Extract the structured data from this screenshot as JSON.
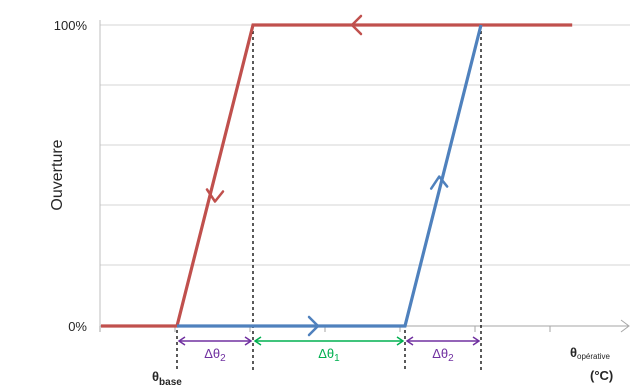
{
  "chart_data": {
    "type": "line",
    "ylabel": "Ouverture",
    "y_ticks": [
      "0%",
      "100%"
    ],
    "gridlines": true,
    "x_axis_label": {
      "symbol": "θ",
      "subscript": "opérative",
      "unit": "(°C)"
    },
    "x_marker": {
      "symbol": "θ",
      "subscript": "base"
    },
    "series": [
      {
        "color": "#c0504d",
        "points": [
          [
            -1.0,
            0
          ],
          [
            0,
            0
          ],
          [
            1,
            100
          ],
          [
            5.2,
            100
          ]
        ],
        "arrows": [
          "descending-slope",
          "leftward-top"
        ]
      },
      {
        "color": "#4f81bd",
        "points": [
          [
            0,
            0
          ],
          [
            3,
            0
          ],
          [
            4,
            100
          ]
        ],
        "arrows": [
          "rightward-bottom",
          "ascending-slope"
        ]
      }
    ],
    "spans": [
      {
        "symbol": "Δθ",
        "subscript": "2",
        "from": 0,
        "to": 1,
        "color": "#7030a0"
      },
      {
        "symbol": "Δθ",
        "subscript": "1",
        "from": 1,
        "to": 3,
        "color": "#00b050"
      },
      {
        "symbol": "Δθ",
        "subscript": "2",
        "from": 3,
        "to": 4,
        "color": "#7030a0"
      }
    ]
  }
}
